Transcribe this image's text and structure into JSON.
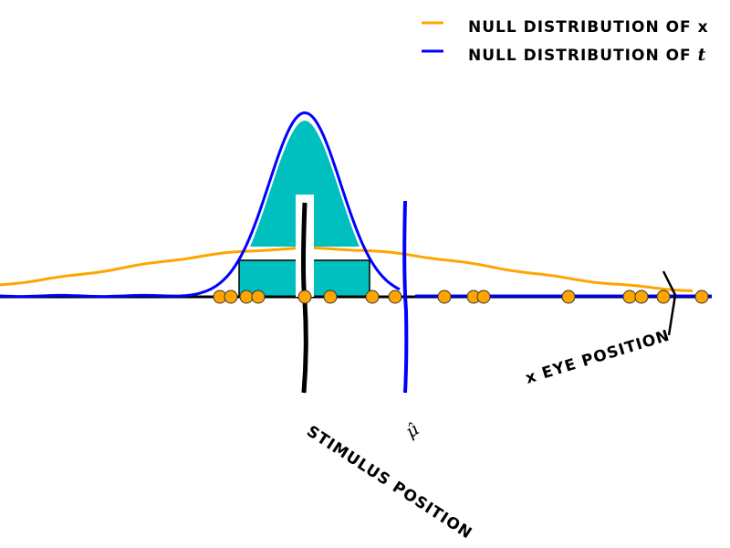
{
  "legend": {
    "placement": "top-right",
    "items": [
      {
        "label": "NULL DISTRIBUTION OF",
        "symbol": "x",
        "color": "#FFA500"
      },
      {
        "label": "NULL DISTRIBUTION OF",
        "symbol": "t",
        "color": "#0000FF"
      }
    ]
  },
  "annotations": {
    "stimulus": "STIMULUS POSITION",
    "mu_hat": "μ̂",
    "eye": "x EYE POSITION"
  },
  "chart_data": {
    "type": "scatter",
    "style": "xkcd",
    "samples": [
      -0.93,
      -0.81,
      -0.64,
      -0.51,
      0,
      0.28,
      0.74,
      0.99,
      1.53,
      1.85,
      1.96,
      2.89,
      3.56,
      3.69,
      3.93,
      4.35
    ],
    "stimulus_position": 0,
    "mu_hat": 1.1,
    "eye_position": 4.0,
    "null_x": {
      "mean": 0.06,
      "sd": 2.0
    },
    "null_t": {
      "mean": 0,
      "sd": 0.4
    },
    "colors": {
      "samples": "#FFA500",
      "null_x": "#FFA500",
      "null_t": "#0000FF",
      "fill": "#00BFBF"
    }
  }
}
